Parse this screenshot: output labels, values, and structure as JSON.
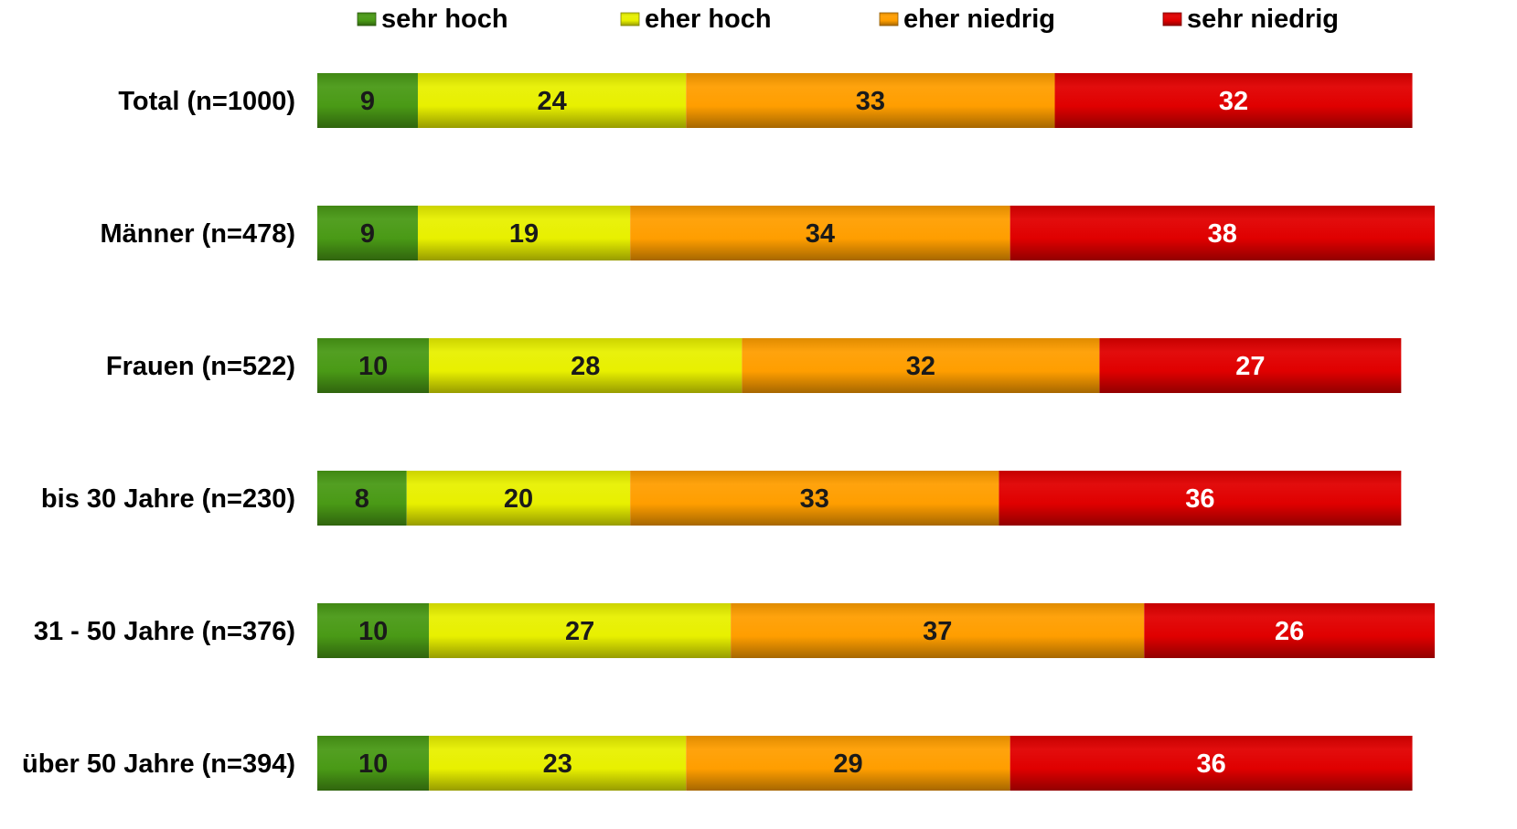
{
  "chart_data": {
    "type": "bar",
    "orientation": "horizontal",
    "stacked": true,
    "categories": [
      "Total (n=1000)",
      "Männer (n=478)",
      "Frauen (n=522)",
      "bis 30 Jahre (n=230)",
      "31 - 50 Jahre (n=376)",
      "über 50 Jahre (n=394)"
    ],
    "series": [
      {
        "name": "sehr hoch",
        "values": [
          9,
          9,
          10,
          8,
          10,
          10
        ],
        "color": "#4A9A16",
        "label_color": "#1a1a1a"
      },
      {
        "name": "eher hoch",
        "values": [
          24,
          19,
          28,
          20,
          27,
          23
        ],
        "color": "#E8F000",
        "label_color": "#1a1a1a"
      },
      {
        "name": "eher niedrig",
        "values": [
          33,
          34,
          32,
          33,
          37,
          29
        ],
        "color": "#FF9E00",
        "label_color": "#1a1a1a"
      },
      {
        "name": "sehr niedrig",
        "values": [
          32,
          38,
          27,
          36,
          26,
          36
        ],
        "color": "#E00000",
        "label_color": "#ffffff"
      }
    ],
    "legend_position": "top",
    "data_labels": true,
    "grid": false,
    "axis_visible": false
  }
}
